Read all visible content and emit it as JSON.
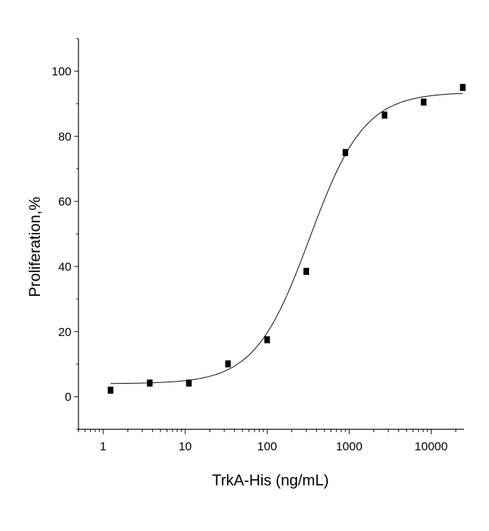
{
  "chart_data": {
    "type": "scatter",
    "xlabel": "TrkA-His (ng/mL)",
    "ylabel": "Proliferation,%",
    "xscale": "log",
    "xlim": [
      0.5,
      25000
    ],
    "ylim": [
      -10,
      110
    ],
    "x_ticks": [
      1,
      10,
      100,
      1000,
      10000
    ],
    "x_tick_labels": [
      "1",
      "10",
      "100",
      "1000",
      "10000"
    ],
    "y_ticks": [
      0,
      20,
      40,
      60,
      80,
      100
    ],
    "y_tick_labels": [
      "0",
      "20",
      "40",
      "60",
      "80",
      "100"
    ],
    "grid": false,
    "series": [
      {
        "type": "scatter",
        "marker": "square",
        "x": [
          1.23,
          3.7,
          11.1,
          33.3,
          100,
          300,
          900,
          2700,
          8100,
          24300
        ],
        "y": [
          2,
          4.2,
          4.2,
          10.1,
          17.5,
          38.5,
          75,
          86.5,
          90.5,
          95
        ]
      },
      {
        "type": "line",
        "fit": "4-parameter logistic",
        "bottom": 4,
        "top": 93.5,
        "ec50": 330,
        "hill": 1.3,
        "x_range": [
          1.23,
          24300
        ]
      }
    ]
  }
}
